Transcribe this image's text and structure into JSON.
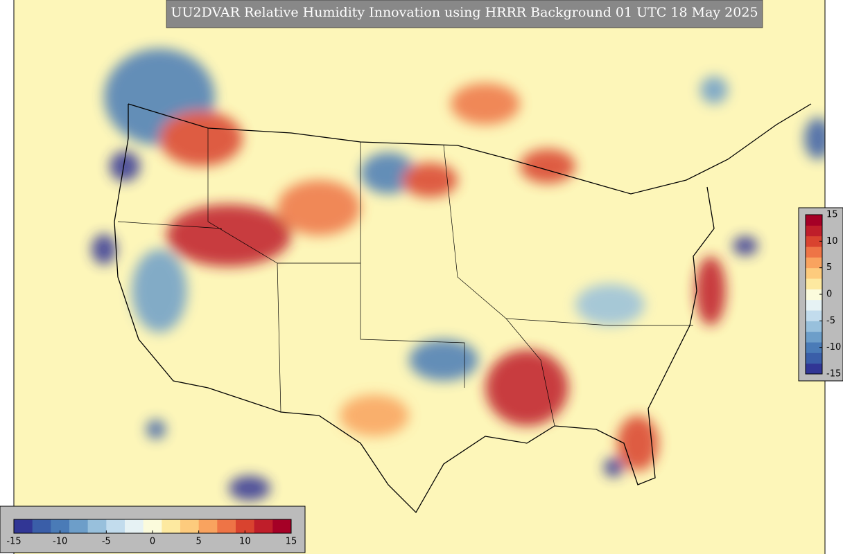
{
  "title": "UU2DVAR Relative Humidity Innovation using HRRR Background 01 UTC 18 May 2025",
  "colormap": [
    "#313695",
    "#3a5ea8",
    "#4a7bb7",
    "#6d9ec9",
    "#98c0dc",
    "#c2dced",
    "#e6f2f4",
    "#fbfbdc",
    "#fde9a0",
    "#fdcb7d",
    "#f9a35f",
    "#ee7446",
    "#d9432f",
    "#bf1e2a",
    "#a50026"
  ],
  "colorbar_bottom": {
    "lim": [
      -15,
      15
    ],
    "ticks": [
      -15,
      -10,
      -5,
      0,
      5,
      10,
      15
    ]
  },
  "colorbar_right": {
    "lim": [
      -15,
      15
    ],
    "ticks": [
      -15,
      -10,
      -5,
      0,
      5,
      10,
      15
    ]
  }
}
